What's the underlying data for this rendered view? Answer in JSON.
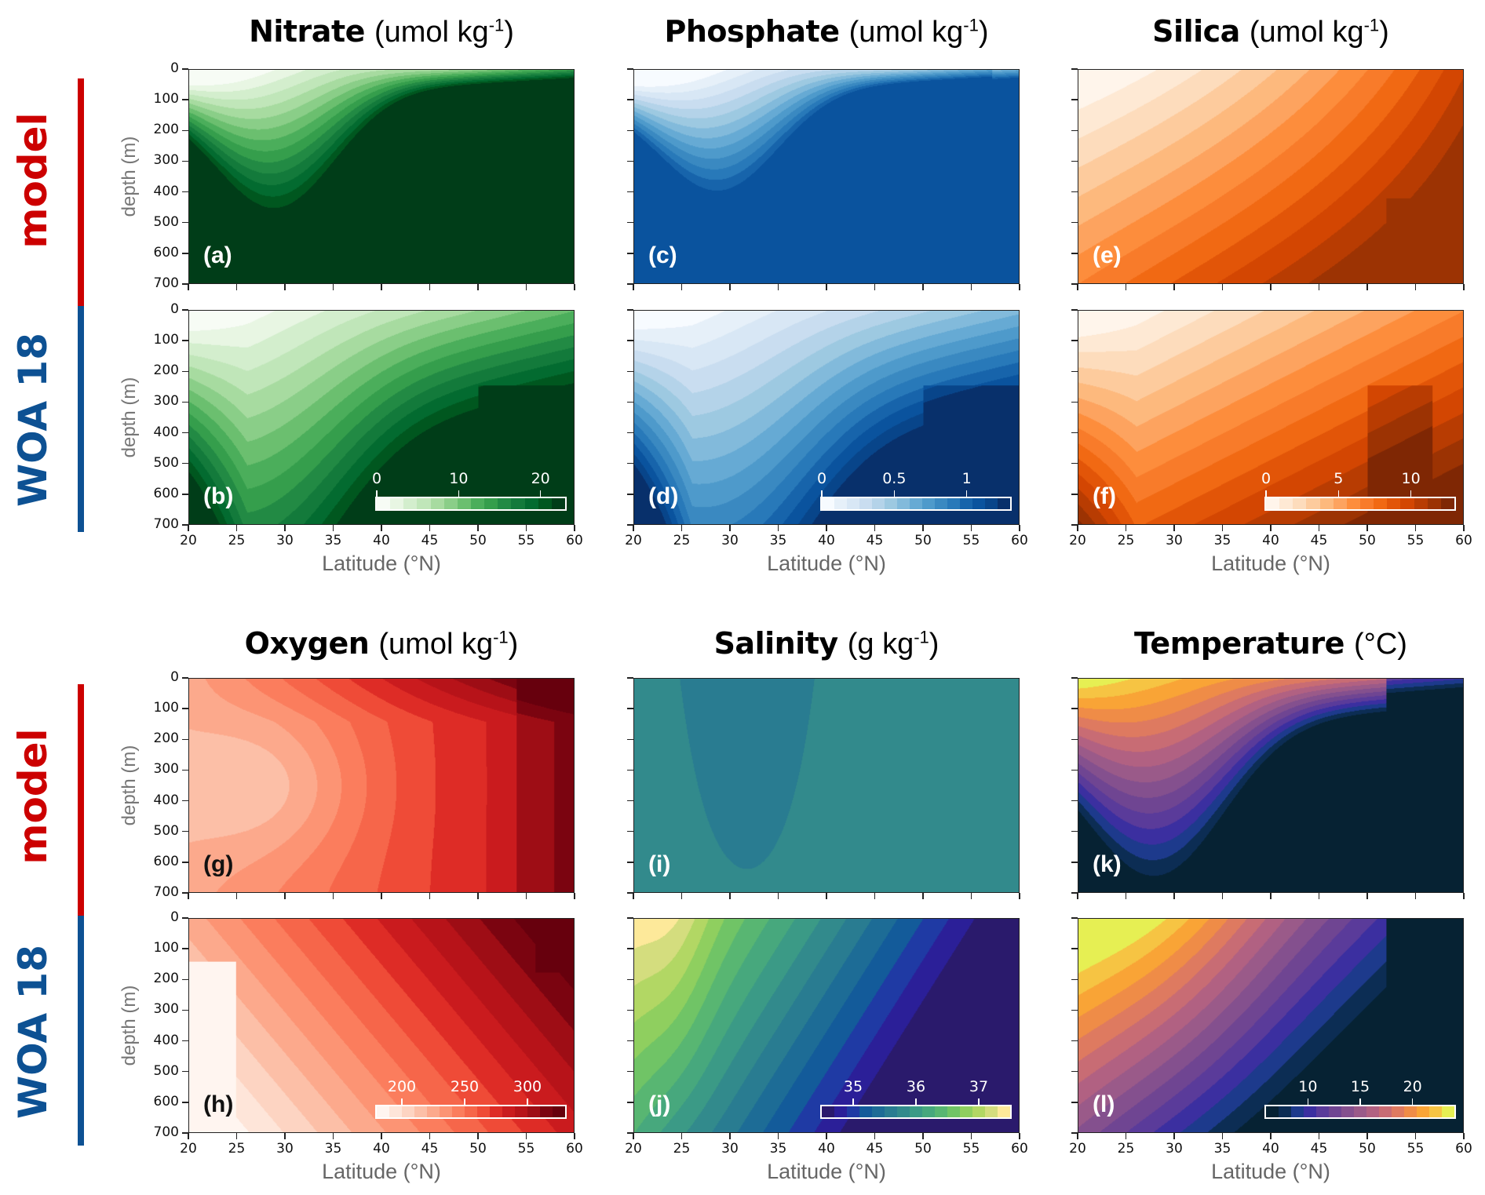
{
  "figure": {
    "row_labels": [
      {
        "text": "model",
        "color": "#cc0000"
      },
      {
        "text": "WOA 18",
        "color": "#0d5193"
      },
      {
        "text": "model",
        "color": "#cc0000"
      },
      {
        "text": "WOA 18",
        "color": "#0d5193"
      }
    ],
    "ylabel": "depth (m)",
    "xlabel": "Latitude (°N)",
    "y_ticks": [
      "0",
      "100",
      "200",
      "300",
      "400",
      "500",
      "600",
      "700"
    ],
    "x_ticks": [
      "20",
      "25",
      "30",
      "35",
      "40",
      "45",
      "50",
      "55",
      "60"
    ]
  },
  "chart_data": [
    {
      "type": "heatmap",
      "variable": "Nitrate",
      "units": "(umol kg",
      "units_sup": "-1",
      "units_close": ")",
      "colormap": "Greens",
      "xlim": [
        20,
        60
      ],
      "ylim": [
        700,
        0
      ],
      "xlabel": "Latitude (°N)",
      "ylabel": "depth (m)",
      "colorbar": {
        "ticks": [
          "0",
          "10",
          "20"
        ],
        "range": [
          0,
          23
        ],
        "colors": [
          "#f7fcf5",
          "#e8f6e3",
          "#d3eecd",
          "#c0e6b9",
          "#a7dba0",
          "#8ace88",
          "#6bbf6f",
          "#4bae5b",
          "#359e4c",
          "#228a44",
          "#137a3b",
          "#036b30",
          "#00571f",
          "#003d18"
        ]
      },
      "panels": [
        {
          "label": "(a)",
          "source": "model",
          "label_color": "#ffffff"
        },
        {
          "label": "(b)",
          "source": "WOA 18",
          "label_color": "#ffffff"
        }
      ]
    },
    {
      "type": "heatmap",
      "variable": "Phosphate",
      "units": "(umol kg",
      "units_sup": "-1",
      "units_close": ")",
      "colormap": "Blues",
      "xlim": [
        20,
        60
      ],
      "ylim": [
        700,
        0
      ],
      "xlabel": "Latitude (°N)",
      "ylabel": "depth (m)",
      "colorbar": {
        "ticks": [
          "0",
          "0.5",
          "1"
        ],
        "range": [
          0,
          1.3
        ],
        "colors": [
          "#f7fbff",
          "#e6f0f9",
          "#d8e7f5",
          "#c9ddf0",
          "#b4d3e9",
          "#9dc9e1",
          "#82badb",
          "#66aad4",
          "#4e9acb",
          "#3a89c1",
          "#2879b9",
          "#1764ab",
          "#0a539e",
          "#08458a",
          "#08306b"
        ]
      },
      "panels": [
        {
          "label": "(c)",
          "source": "model",
          "label_color": "#ffffff"
        },
        {
          "label": "(d)",
          "source": "WOA 18",
          "label_color": "#ffffff"
        }
      ]
    },
    {
      "type": "heatmap",
      "variable": "Silica",
      "units": "(umol kg",
      "units_sup": "-1",
      "units_close": ")",
      "colormap": "Oranges",
      "xlim": [
        20,
        60
      ],
      "ylim": [
        700,
        0
      ],
      "xlabel": "Latitude (°N)",
      "ylabel": "depth (m)",
      "colorbar": {
        "ticks": [
          "0",
          "5",
          "10"
        ],
        "range": [
          0,
          13
        ],
        "colors": [
          "#fff5eb",
          "#fee9d4",
          "#fddcbc",
          "#fdcb9d",
          "#fdb97d",
          "#fda35f",
          "#fd8d3c",
          "#f87b2a",
          "#f16913",
          "#e25508",
          "#d34602",
          "#b83c02",
          "#9c3303",
          "#7f2704"
        ]
      },
      "panels": [
        {
          "label": "(e)",
          "source": "model",
          "label_color": "#ffffff"
        },
        {
          "label": "(f)",
          "source": "WOA 18",
          "label_color": "#ffffff"
        }
      ]
    },
    {
      "type": "heatmap",
      "variable": "Oxygen",
      "units": "(umol kg",
      "units_sup": "-1",
      "units_close": ")",
      "colormap": "Reds",
      "xlim": [
        20,
        60
      ],
      "ylim": [
        700,
        0
      ],
      "xlabel": "Latitude (°N)",
      "ylabel": "depth (m)",
      "colorbar": {
        "ticks": [
          "200",
          "250",
          "300"
        ],
        "range": [
          180,
          330
        ],
        "colors": [
          "#fff5f0",
          "#fee5d9",
          "#fdd4c2",
          "#fcbfa7",
          "#fca98c",
          "#fc9474",
          "#fb7d5d",
          "#f6664a",
          "#ef4b37",
          "#de2c26",
          "#ca1b1e",
          "#b71319",
          "#9e0d15",
          "#7b0410",
          "#67000d"
        ]
      },
      "panels": [
        {
          "label": "(g)",
          "source": "model",
          "label_color": "#111111"
        },
        {
          "label": "(h)",
          "source": "WOA 18",
          "label_color": "#111111"
        }
      ]
    },
    {
      "type": "heatmap",
      "variable": "Salinity",
      "units": "(g kg",
      "units_sup": "-1",
      "units_close": ")",
      "colormap": "haline",
      "xlim": [
        20,
        60
      ],
      "ylim": [
        700,
        0
      ],
      "xlabel": "Latitude (°N)",
      "ylabel": "depth (m)",
      "colorbar": {
        "ticks": [
          "35",
          "36",
          "37"
        ],
        "range": [
          34.5,
          37.5
        ],
        "colors": [
          "#2a1a6c",
          "#2b1f98",
          "#1f3aa4",
          "#135b9a",
          "#1d6c96",
          "#297c91",
          "#328a8c",
          "#3b9a86",
          "#47a87d",
          "#58b672",
          "#70c466",
          "#8fcf5f",
          "#b2d764",
          "#d4dd7e",
          "#fde99a"
        ]
      },
      "panels": [
        {
          "label": "(i)",
          "source": "model",
          "label_color": "#ffffff"
        },
        {
          "label": "(j)",
          "source": "WOA 18",
          "label_color": "#ffffff"
        }
      ]
    },
    {
      "type": "heatmap",
      "variable": "Temperature",
      "units": "(°C",
      "units_sup": "",
      "units_close": ")",
      "colormap": "thermal",
      "xlim": [
        20,
        60
      ],
      "ylim": [
        700,
        0
      ],
      "xlabel": "Latitude (°N)",
      "ylabel": "depth (m)",
      "colorbar": {
        "ticks": [
          "10",
          "15",
          "20"
        ],
        "range": [
          6,
          24
        ],
        "colors": [
          "#062233",
          "#0c2d54",
          "#1d3a8c",
          "#3b2fa0",
          "#5a3b9a",
          "#6f4592",
          "#84508e",
          "#9a5a89",
          "#b16182",
          "#c86c74",
          "#de7a60",
          "#ef8c47",
          "#f9a436",
          "#f6c443",
          "#e6ef53"
        ]
      },
      "panels": [
        {
          "label": "(k)",
          "source": "model",
          "label_color": "#ffffff"
        },
        {
          "label": "(l)",
          "source": "WOA 18",
          "label_color": "#ffffff"
        }
      ]
    }
  ]
}
